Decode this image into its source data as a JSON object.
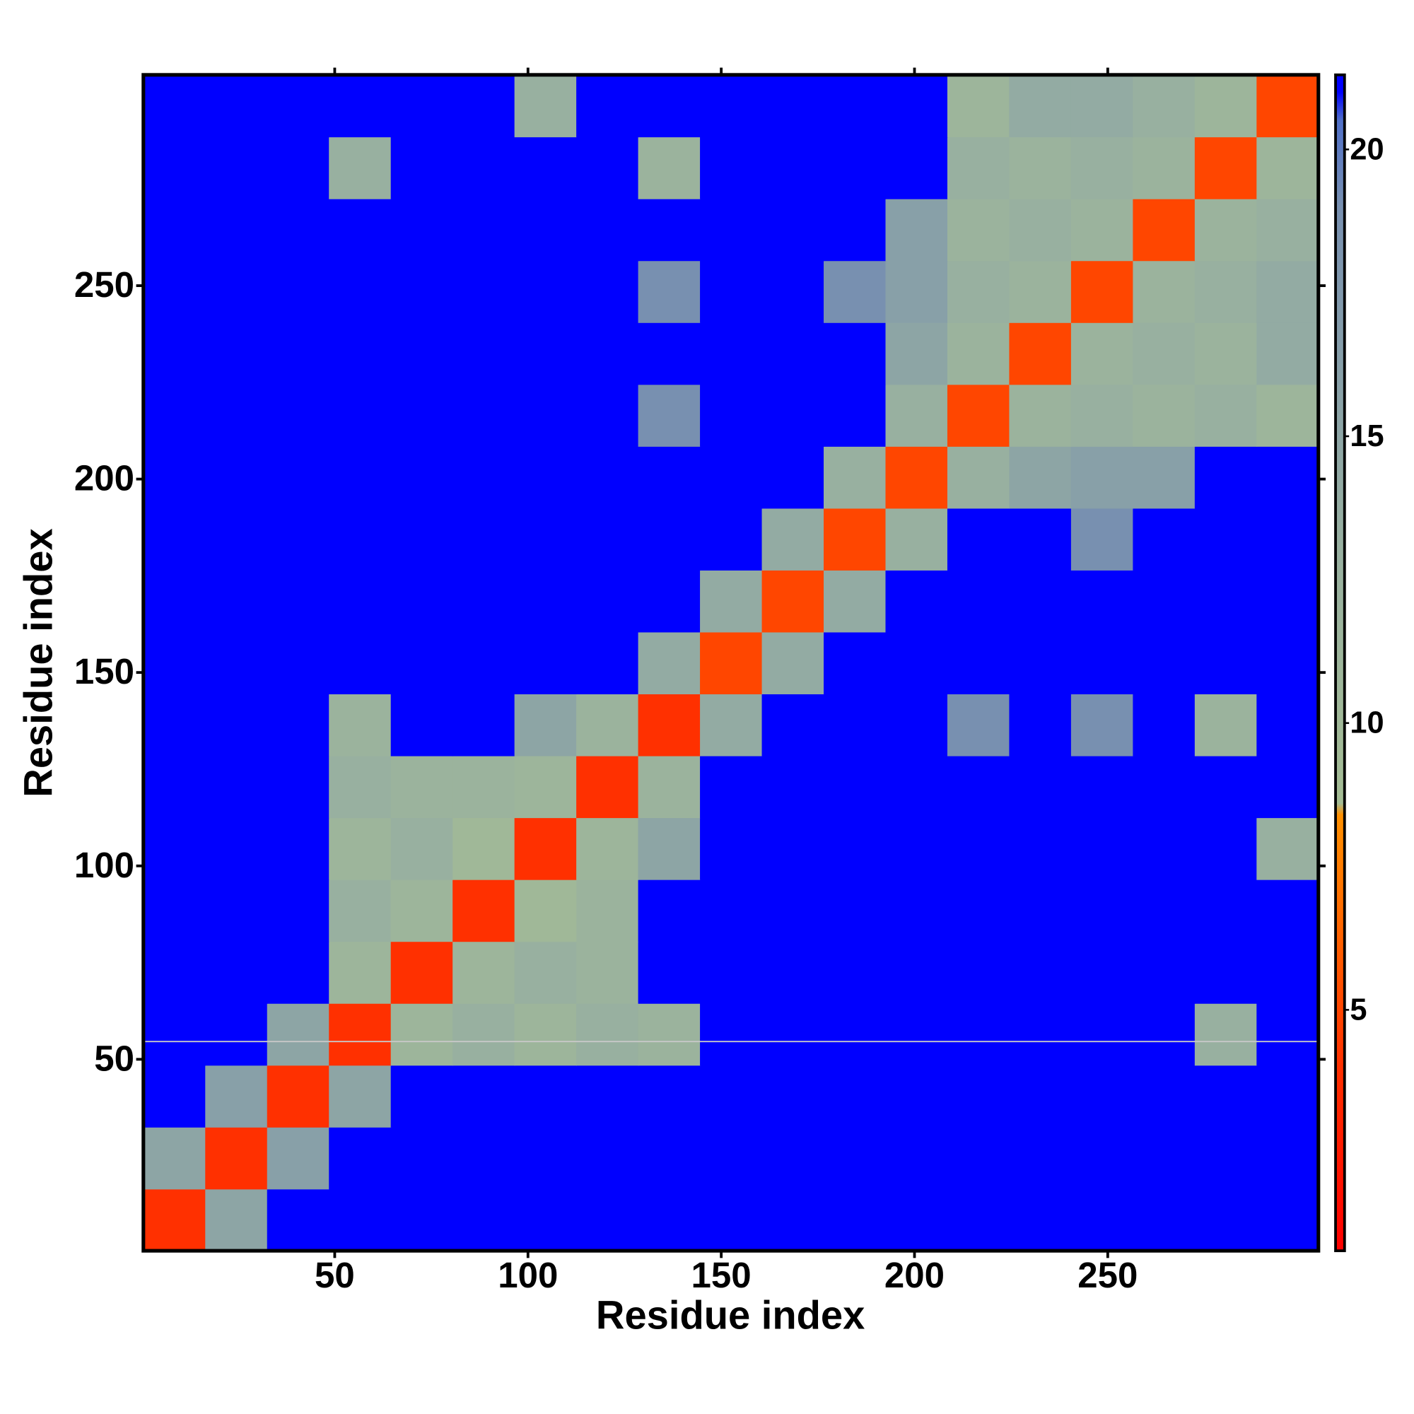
{
  "chart_data": {
    "type": "heatmap",
    "x_label": "Residue index",
    "y_label": "Residue index",
    "xlim": [
      0.5,
      304.5
    ],
    "ylim": [
      0.5,
      304.5
    ],
    "xticks": [
      50,
      100,
      150,
      200,
      250
    ],
    "yticks": [
      50,
      100,
      150,
      200,
      250
    ],
    "zlim": [
      0.8,
      21.3
    ],
    "zticks": [
      5,
      10,
      15,
      20
    ],
    "colorscale": [
      [
        0.8,
        "#ff0000"
      ],
      [
        4,
        "#ff3000"
      ],
      [
        8.4,
        "#ff9000"
      ],
      [
        8.6,
        "#a4bc94"
      ],
      [
        13,
        "#98b0a0"
      ],
      [
        19,
        "#7890b0"
      ],
      [
        20.5,
        "#5070c8"
      ],
      [
        21,
        "#0000ff"
      ],
      [
        21.3,
        "#0000ff"
      ]
    ],
    "z": [
      [
        4,
        15,
        21,
        21,
        21,
        21,
        21,
        21,
        21,
        21,
        21,
        21,
        21,
        21,
        21,
        21,
        21,
        21,
        21
      ],
      [
        15,
        4,
        16,
        21,
        21,
        21,
        21,
        21,
        21,
        21,
        21,
        21,
        21,
        21,
        21,
        21,
        21,
        21,
        21
      ],
      [
        21,
        16,
        4,
        15,
        21,
        21,
        21,
        21,
        21,
        21,
        21,
        21,
        21,
        21,
        21,
        21,
        21,
        21,
        21
      ],
      [
        21,
        21,
        15,
        4,
        11,
        13,
        11,
        13,
        12,
        21,
        21,
        21,
        21,
        21,
        21,
        21,
        21,
        13,
        21
      ],
      [
        21,
        21,
        21,
        11,
        4,
        11,
        13,
        12,
        21,
        21,
        21,
        21,
        21,
        21,
        21,
        21,
        21,
        21,
        21
      ],
      [
        21,
        21,
        21,
        13,
        11,
        4,
        10,
        12,
        21,
        21,
        21,
        21,
        21,
        21,
        21,
        21,
        21,
        21,
        21
      ],
      [
        21,
        21,
        21,
        11,
        13,
        10,
        4,
        11,
        15,
        21,
        21,
        21,
        21,
        21,
        21,
        21,
        21,
        21,
        13
      ],
      [
        21,
        21,
        21,
        13,
        12,
        12,
        11,
        4,
        12,
        21,
        21,
        21,
        21,
        21,
        21,
        21,
        21,
        21,
        21
      ],
      [
        21,
        21,
        21,
        12,
        21,
        21,
        15,
        12,
        4,
        14,
        21,
        21,
        21,
        19,
        21,
        19,
        21,
        12,
        21
      ],
      [
        21,
        21,
        21,
        21,
        21,
        21,
        21,
        21,
        14,
        5,
        14,
        21,
        21,
        21,
        21,
        21,
        21,
        21,
        21
      ],
      [
        21,
        21,
        21,
        21,
        21,
        21,
        21,
        21,
        21,
        14,
        5,
        14,
        21,
        21,
        21,
        21,
        21,
        21,
        21
      ],
      [
        21,
        21,
        21,
        21,
        21,
        21,
        21,
        21,
        21,
        21,
        14,
        5,
        13,
        21,
        21,
        19,
        21,
        21,
        21
      ],
      [
        21,
        21,
        21,
        21,
        21,
        21,
        21,
        21,
        21,
        21,
        21,
        13,
        5,
        13,
        15,
        16,
        16,
        21,
        21
      ],
      [
        21,
        21,
        21,
        21,
        21,
        21,
        21,
        21,
        19,
        21,
        21,
        21,
        13,
        5,
        12,
        13,
        12,
        13,
        11
      ],
      [
        21,
        21,
        21,
        21,
        21,
        21,
        21,
        21,
        21,
        21,
        21,
        21,
        15,
        12,
        5,
        12,
        13,
        12,
        14
      ],
      [
        21,
        21,
        21,
        21,
        21,
        21,
        21,
        21,
        19,
        21,
        21,
        19,
        16,
        13,
        12,
        5,
        12,
        13,
        14
      ],
      [
        21,
        21,
        21,
        21,
        21,
        21,
        21,
        21,
        21,
        21,
        21,
        21,
        16,
        12,
        13,
        12,
        5,
        12,
        13
      ],
      [
        21,
        21,
        21,
        13,
        21,
        21,
        21,
        21,
        12,
        21,
        21,
        21,
        21,
        13,
        12,
        13,
        12,
        5,
        11
      ],
      [
        21,
        21,
        21,
        21,
        21,
        21,
        13,
        21,
        21,
        21,
        21,
        21,
        21,
        11,
        14,
        14,
        13,
        11,
        5
      ]
    ]
  }
}
